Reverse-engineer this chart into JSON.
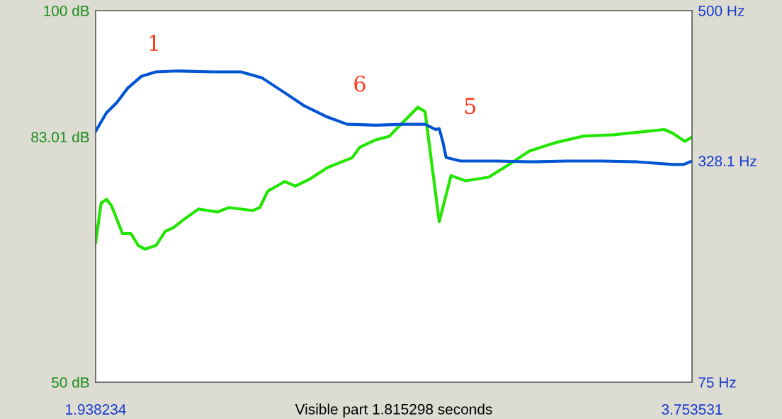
{
  "chart_data": {
    "type": "line",
    "xlabel": "Visible part 1.815298 seconds",
    "xlim": [
      1.938234,
      3.753531
    ],
    "xticks": [
      1.938234,
      3.753531
    ],
    "ylim": [
      50,
      100
    ],
    "yticks": [
      {
        "value": 50,
        "label": "50 dB"
      },
      {
        "value": 83.01,
        "label": "83.01 dB"
      },
      {
        "value": 100,
        "label": "100 dB"
      }
    ],
    "y2lim": [
      75,
      500
    ],
    "y2ticks": [
      {
        "value": 75,
        "label": "75 Hz"
      },
      {
        "value": 328.1,
        "label": "328.1 Hz"
      },
      {
        "value": 500,
        "label": "500 Hz"
      }
    ],
    "grid": false,
    "legend": false,
    "marker": "none",
    "line_style": "solid",
    "series": [
      {
        "color": "#22e600",
        "x": [
          1.9383,
          1.955,
          1.971,
          1.986,
          2.02,
          2.046,
          2.068,
          2.089,
          2.122,
          2.15,
          2.175,
          2.201,
          2.251,
          2.309,
          2.344,
          2.417,
          2.438,
          2.462,
          2.514,
          2.546,
          2.589,
          2.645,
          2.719,
          2.742,
          2.79,
          2.833,
          2.854,
          2.919,
          2.941,
          2.984,
          3.02,
          3.064,
          3.135,
          3.193,
          3.258,
          3.335,
          3.421,
          3.516,
          3.624,
          3.669,
          3.695,
          3.732,
          3.7535
        ],
        "values": [
          68.8,
          74.1,
          74.6,
          73.8,
          70.0,
          70.0,
          68.4,
          67.9,
          68.4,
          70.3,
          70.8,
          71.7,
          73.3,
          72.9,
          73.5,
          73.1,
          73.5,
          75.7,
          77.0,
          76.4,
          77.3,
          78.9,
          80.2,
          81.6,
          82.6,
          83.1,
          84.1,
          87.0,
          86.4,
          71.6,
          77.8,
          77.1,
          77.6,
          79.2,
          81.1,
          82.2,
          83.1,
          83.3,
          83.8,
          84.0,
          83.5,
          82.4,
          83.0
        ]
      },
      {
        "color": "#0055d4",
        "axis": "y2",
        "x": [
          1.9383,
          1.971,
          2.003,
          2.035,
          2.078,
          2.122,
          2.186,
          2.294,
          2.38,
          2.445,
          2.51,
          2.574,
          2.639,
          2.704,
          2.79,
          2.876,
          2.941,
          2.973,
          2.984,
          2.995,
          3.005,
          3.049,
          3.156,
          3.264,
          3.372,
          3.48,
          3.588,
          3.695,
          3.728,
          3.7535
        ],
        "values": [
          362,
          383,
          395,
          411,
          425,
          430,
          431,
          430,
          430,
          423,
          407,
          391,
          379,
          370,
          369,
          370,
          370,
          364,
          365,
          350,
          332,
          328,
          328,
          327,
          328,
          328,
          327,
          324,
          324,
          328
        ]
      }
    ],
    "annotations": [
      "1",
      "6",
      "5"
    ]
  }
}
